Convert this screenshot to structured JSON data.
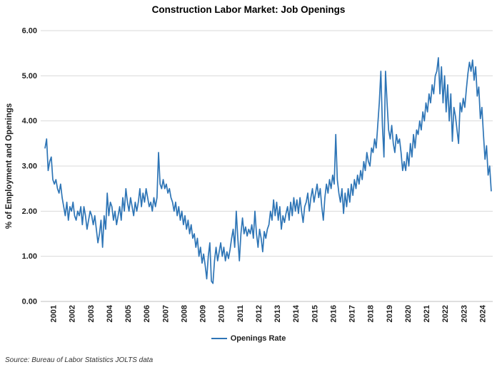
{
  "title": "Construction Labor Market: Job Openings",
  "source_note": "Source: Bureau of Labor Statistics JOLTS data",
  "legend": {
    "label": "Openings Rate"
  },
  "chart_data": {
    "type": "line",
    "title": "Construction Labor Market: Job Openings",
    "xlabel": "",
    "ylabel": "% of Employment and Openings",
    "ylim": [
      0,
      6
    ],
    "ytick_step": 1,
    "ytick_decimals": 2,
    "grid": "horizontal",
    "legend_position": "bottom",
    "x_frequency": "monthly",
    "x_tick_labels": [
      "2001",
      "2002",
      "2003",
      "2004",
      "2005",
      "2006",
      "2007",
      "2008",
      "2009",
      "2010",
      "2011",
      "2012",
      "2013",
      "2014",
      "2015",
      "2016",
      "2017",
      "2018",
      "2019",
      "2020",
      "2021",
      "2022",
      "2023",
      "2024"
    ],
    "colors": {
      "line": "#2E75B6",
      "gridline": "#D9D9D9",
      "axis_line": "#BFBFBF",
      "tick_text": "#1F1F1F"
    },
    "series": [
      {
        "name": "Openings Rate",
        "color": "#2E75B6",
        "values_by_year": {
          "2001": [
            3.4,
            3.6,
            2.9,
            3.1,
            3.2,
            2.7,
            2.6,
            2.7,
            2.5,
            2.4,
            2.6,
            2.3
          ],
          "2002": [
            2.1,
            1.9,
            2.2,
            1.8,
            2.1,
            2.0,
            2.2,
            1.9,
            1.8,
            2.0,
            1.9,
            2.1
          ],
          "2003": [
            1.7,
            2.1,
            1.9,
            1.6,
            1.8,
            2.0,
            1.9,
            1.7,
            1.9,
            1.6,
            1.3,
            1.5
          ],
          "2004": [
            1.8,
            1.2,
            1.9,
            1.6,
            2.4,
            1.9,
            2.2,
            2.1,
            1.8,
            2.0,
            1.7,
            1.9
          ],
          "2005": [
            2.1,
            1.8,
            2.3,
            2.0,
            2.5,
            2.2,
            2.0,
            2.3,
            2.1,
            1.9,
            2.2,
            2.0
          ],
          "2006": [
            2.2,
            2.5,
            2.1,
            2.4,
            2.2,
            2.5,
            2.3,
            2.1,
            2.2,
            2.0,
            2.3,
            2.1
          ],
          "2007": [
            2.3,
            3.3,
            2.6,
            2.5,
            2.7,
            2.5,
            2.6,
            2.4,
            2.5,
            2.3,
            2.2,
            2.0
          ],
          "2008": [
            2.2,
            1.9,
            2.1,
            1.8,
            2.0,
            1.7,
            1.9,
            1.6,
            1.8,
            1.5,
            1.7,
            1.4
          ],
          "2009": [
            1.5,
            1.2,
            1.4,
            1.0,
            1.2,
            0.85,
            1.05,
            0.8,
            0.5,
            1.0,
            1.3,
            0.45
          ],
          "2010": [
            0.4,
            0.9,
            1.2,
            0.9,
            1.1,
            1.3,
            1.0,
            1.2,
            0.9,
            1.1,
            0.95,
            1.15
          ],
          "2011": [
            1.4,
            1.6,
            1.2,
            2.0,
            1.4,
            0.9,
            1.5,
            1.85,
            1.5,
            1.65,
            1.45,
            1.6
          ],
          "2012": [
            1.5,
            1.7,
            1.4,
            2.0,
            1.5,
            1.2,
            1.6,
            1.4,
            1.1,
            1.55,
            1.4,
            1.6
          ],
          "2013": [
            1.7,
            2.0,
            1.8,
            2.25,
            1.9,
            2.2,
            1.8,
            2.1,
            1.6,
            1.9,
            1.75,
            1.95
          ],
          "2014": [
            2.1,
            1.8,
            2.2,
            1.9,
            2.3,
            2.0,
            2.25,
            1.95,
            2.3,
            2.0,
            1.75,
            2.1
          ],
          "2015": [
            2.2,
            2.4,
            2.0,
            2.3,
            2.5,
            2.2,
            2.4,
            2.6,
            2.3,
            2.5,
            2.1,
            1.8
          ],
          "2016": [
            2.3,
            2.6,
            2.4,
            2.7,
            2.5,
            2.8,
            2.6,
            3.7,
            2.7,
            2.4,
            2.2,
            2.5
          ],
          "2017": [
            1.95,
            2.4,
            2.1,
            2.5,
            2.2,
            2.6,
            2.35,
            2.7,
            2.5,
            2.8,
            2.6,
            2.9
          ],
          "2018": [
            2.7,
            3.1,
            2.9,
            3.3,
            3.1,
            3.0,
            3.4,
            3.3,
            3.6,
            3.4,
            3.9,
            4.4
          ],
          "2019": [
            5.1,
            3.9,
            3.2,
            5.1,
            4.4,
            3.8,
            3.6,
            3.9,
            3.5,
            3.3,
            3.7,
            3.5
          ],
          "2020": [
            3.6,
            3.3,
            2.9,
            3.1,
            2.9,
            3.3,
            3.0,
            3.5,
            3.2,
            3.7,
            3.4,
            3.8
          ],
          "2021": [
            3.7,
            4.0,
            3.8,
            4.2,
            4.0,
            4.4,
            4.2,
            4.6,
            4.4,
            4.8,
            4.6,
            5.0
          ],
          "2022": [
            5.1,
            5.4,
            4.6,
            5.2,
            4.4,
            5.0,
            4.2,
            4.8,
            4.0,
            4.6,
            3.55,
            4.3
          ],
          "2023": [
            4.1,
            3.8,
            3.5,
            4.4,
            4.2,
            4.5,
            4.3,
            4.7,
            5.05,
            5.3,
            5.1,
            5.35
          ],
          "2024": [
            4.9,
            5.2,
            4.55,
            4.75,
            4.05,
            4.3,
            3.7,
            3.15,
            3.45,
            2.8,
            3.0,
            2.45
          ]
        }
      }
    ]
  }
}
